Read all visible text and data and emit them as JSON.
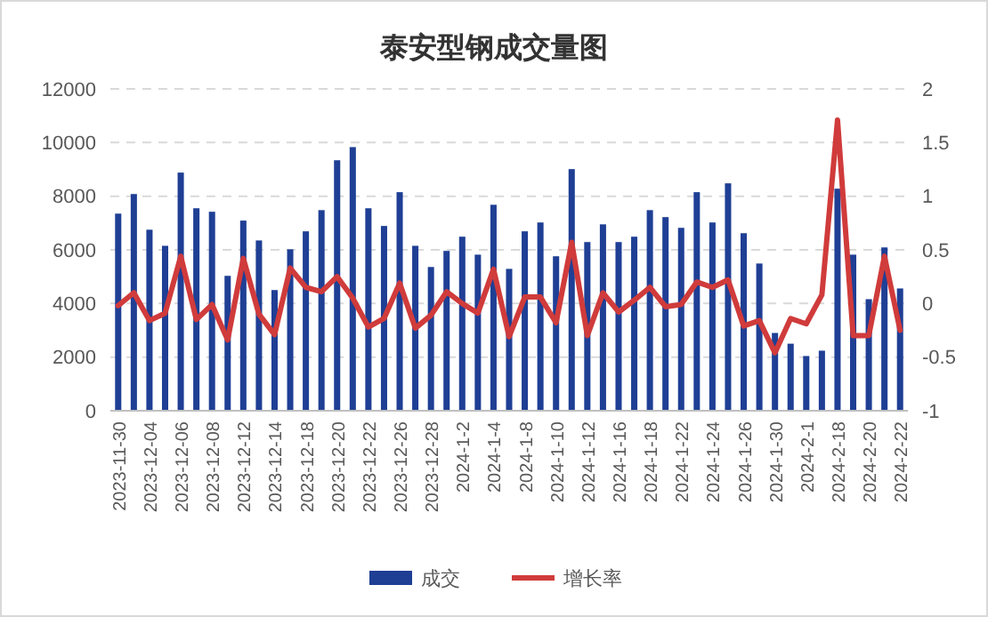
{
  "chart_data": {
    "type": "bar",
    "title": "泰安型钢成交量图",
    "categories": [
      "2023-11-30",
      null,
      "2023-12-04",
      null,
      "2023-12-06",
      null,
      "2023-12-08",
      null,
      "2023-12-12",
      null,
      "2023-12-14",
      null,
      "2023-12-18",
      null,
      "2023-12-20",
      null,
      "2023-12-22",
      null,
      "2023-12-26",
      null,
      "2023-12-28",
      null,
      "2024-1-2",
      null,
      "2024-1-4",
      null,
      "2024-1-8",
      null,
      "2024-1-10",
      null,
      "2024-1-12",
      null,
      "2024-1-16",
      null,
      "2024-1-18",
      null,
      "2024-1-22",
      null,
      "2024-1-24",
      null,
      "2024-1-26",
      null,
      "2024-1-30",
      null,
      "2024-2-1",
      null,
      "2024-2-18",
      null,
      "2024-2-20",
      null,
      "2024-2-22"
    ],
    "series": [
      {
        "name": "成交",
        "color": "#1f3f95",
        "values": [
          7350,
          8080,
          6750,
          6150,
          8880,
          7550,
          7420,
          5030,
          7090,
          6350,
          4500,
          6020,
          6690,
          7480,
          9340,
          9830,
          7550,
          6890,
          8150,
          6150,
          5360,
          5960,
          6490,
          5820,
          7680,
          5290,
          6690,
          7020,
          5760,
          9010,
          6290,
          6950,
          6290,
          6490,
          7480,
          7220,
          6820,
          8150,
          7020,
          8480,
          6620,
          5490,
          2900,
          2500,
          2040,
          2240,
          8280,
          5820,
          4160,
          6090,
          4560
        ]
      },
      {
        "name": "增长率",
        "type": "line",
        "axis": "y2",
        "color": "#d03b3b",
        "values": [
          -0.02,
          0.1,
          -0.16,
          -0.09,
          0.44,
          -0.15,
          -0.01,
          -0.34,
          0.42,
          -0.1,
          -0.29,
          0.33,
          0.15,
          0.11,
          0.25,
          0.05,
          -0.22,
          -0.14,
          0.19,
          -0.23,
          -0.11,
          0.11,
          0,
          -0.09,
          0.32,
          -0.31,
          0.06,
          0.06,
          -0.18,
          0.57,
          -0.3,
          0.1,
          -0.08,
          0.03,
          0.15,
          -0.03,
          -0.01,
          0.2,
          0.15,
          0.22,
          -0.21,
          -0.16,
          -0.46,
          -0.14,
          -0.19,
          0.08,
          1.71,
          -0.3,
          -0.3,
          0.44,
          -0.25
        ]
      }
    ],
    "ylim": [
      0,
      12000
    ],
    "yticks": [
      0,
      2000,
      4000,
      6000,
      8000,
      10000,
      12000
    ],
    "y2lim": [
      -1,
      2
    ],
    "y2ticks": [
      -1,
      -0.5,
      0,
      0.5,
      1,
      1.5,
      2
    ],
    "grid": "y",
    "legend": "bottom",
    "marker": "none",
    "line_style": "solid"
  }
}
